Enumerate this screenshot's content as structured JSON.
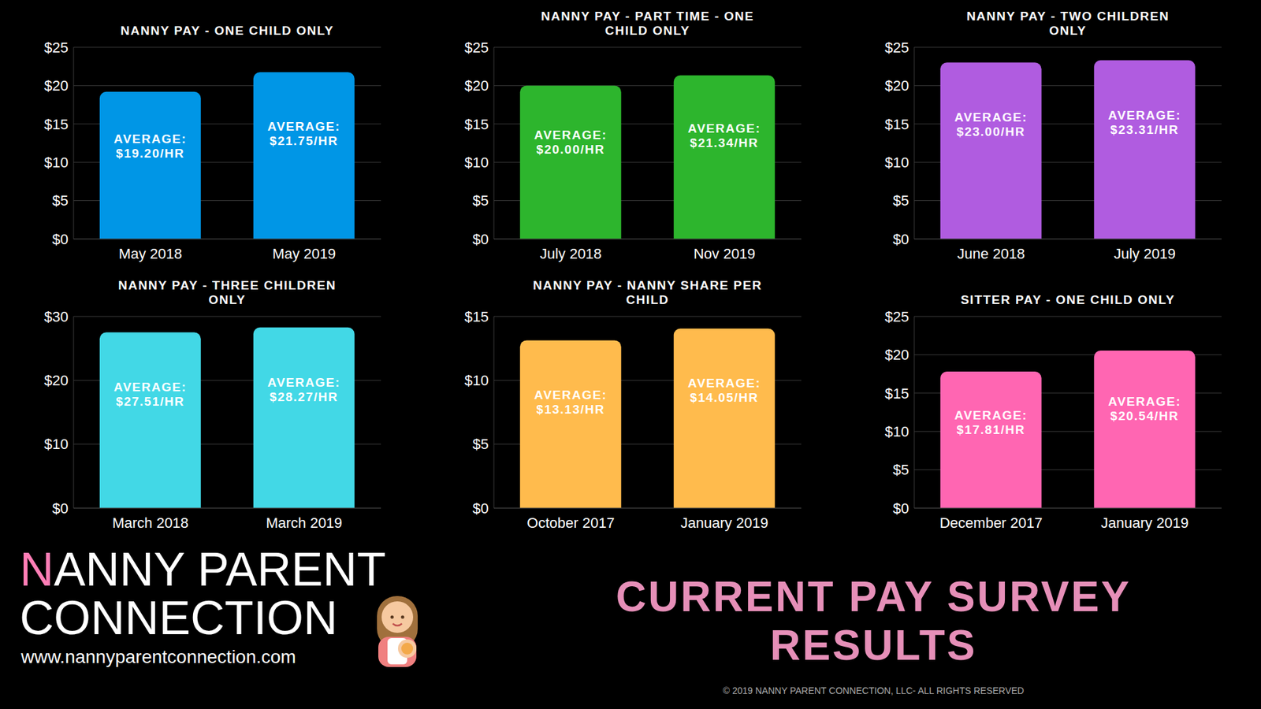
{
  "chart_data": [
    {
      "type": "bar",
      "title": "NANNY PAY - ONE CHILD ONLY",
      "categories": [
        "May 2018",
        "May 2019"
      ],
      "values": [
        19.2,
        21.75
      ],
      "value_labels": [
        "AVERAGE: $19.20/HR",
        "AVERAGE: $21.75/HR"
      ],
      "data_labels": true,
      "color": "#0096e6",
      "ylim": [
        0,
        25
      ],
      "yticks": [
        {
          "value": 0,
          "label": "$0"
        },
        {
          "value": 5,
          "label": "$5"
        },
        {
          "value": 10,
          "label": "$10"
        },
        {
          "value": 15,
          "label": "$15"
        },
        {
          "value": 20,
          "label": "$20"
        },
        {
          "value": 25,
          "label": "$25"
        }
      ],
      "grid": true
    },
    {
      "type": "bar",
      "title": "NANNY PAY - PART TIME - ONE CHILD ONLY",
      "categories": [
        "July 2018",
        "Nov 2019"
      ],
      "values": [
        20.0,
        21.34
      ],
      "value_labels": [
        "AVERAGE: $20.00/HR",
        "AVERAGE: $21.34/HR"
      ],
      "data_labels": true,
      "color": "#2db52d",
      "ylim": [
        0,
        25
      ],
      "yticks": [
        {
          "value": 0,
          "label": "$0"
        },
        {
          "value": 5,
          "label": "$5"
        },
        {
          "value": 10,
          "label": "$10"
        },
        {
          "value": 15,
          "label": "$15"
        },
        {
          "value": 20,
          "label": "$20"
        },
        {
          "value": 25,
          "label": "$25"
        }
      ],
      "grid": true
    },
    {
      "type": "bar",
      "title": "NANNY PAY - TWO CHILDREN ONLY",
      "categories": [
        "June 2018",
        "July 2019"
      ],
      "values": [
        23.0,
        23.31
      ],
      "value_labels": [
        "AVERAGE: $23.00/HR",
        "AVERAGE: $23.31/HR"
      ],
      "data_labels": true,
      "color": "#b05ce0",
      "ylim": [
        0,
        25
      ],
      "yticks": [
        {
          "value": 0,
          "label": "$0"
        },
        {
          "value": 5,
          "label": "$5"
        },
        {
          "value": 10,
          "label": "$10"
        },
        {
          "value": 15,
          "label": "$15"
        },
        {
          "value": 20,
          "label": "$20"
        },
        {
          "value": 25,
          "label": "$25"
        }
      ],
      "grid": true
    },
    {
      "type": "bar",
      "title": "NANNY PAY - THREE CHILDREN ONLY",
      "categories": [
        "March 2018",
        "March 2019"
      ],
      "values": [
        27.51,
        28.27
      ],
      "value_labels": [
        "AVERAGE: $27.51/HR",
        "AVERAGE: $28.27/HR"
      ],
      "data_labels": true,
      "color": "#42d8e6",
      "ylim": [
        0,
        30
      ],
      "yticks": [
        {
          "value": 0,
          "label": "$0"
        },
        {
          "value": 10,
          "label": "$10"
        },
        {
          "value": 20,
          "label": "$20"
        },
        {
          "value": 30,
          "label": "$30"
        }
      ],
      "grid": true
    },
    {
      "type": "bar",
      "title": "NANNY PAY - NANNY SHARE PER CHILD",
      "categories": [
        "October 2017",
        "January 2019"
      ],
      "values": [
        13.13,
        14.05
      ],
      "value_labels": [
        "AVERAGE: $13.13/HR",
        "AVERAGE: $14.05/HR"
      ],
      "data_labels": true,
      "color": "#ffbb4d",
      "ylim": [
        0,
        15
      ],
      "yticks": [
        {
          "value": 0,
          "label": "$0"
        },
        {
          "value": 5,
          "label": "$5"
        },
        {
          "value": 10,
          "label": "$10"
        },
        {
          "value": 15,
          "label": "$15"
        }
      ],
      "grid": true
    },
    {
      "type": "bar",
      "title": "SITTER PAY - ONE CHILD ONLY",
      "categories": [
        "December 2017",
        "January 2019"
      ],
      "values": [
        17.81,
        20.54
      ],
      "value_labels": [
        "AVERAGE: $17.81/HR",
        "AVERAGE: $20.54/HR"
      ],
      "data_labels": true,
      "color": "#ff66b2",
      "ylim": [
        0,
        25
      ],
      "yticks": [
        {
          "value": 0,
          "label": "$0"
        },
        {
          "value": 5,
          "label": "$5"
        },
        {
          "value": 10,
          "label": "$10"
        },
        {
          "value": 15,
          "label": "$15"
        },
        {
          "value": 20,
          "label": "$20"
        },
        {
          "value": 25,
          "label": "$25"
        }
      ],
      "grid": true
    }
  ],
  "brand": {
    "name": "NANNY PARENT CONNECTION",
    "url": "www.nannyparentconnection.com"
  },
  "headline": "CURRENT PAY SURVEY RESULTS",
  "copyright": "© 2019 NANNY PARENT CONNECTION, LLC- ALL RIGHTS RESERVED"
}
